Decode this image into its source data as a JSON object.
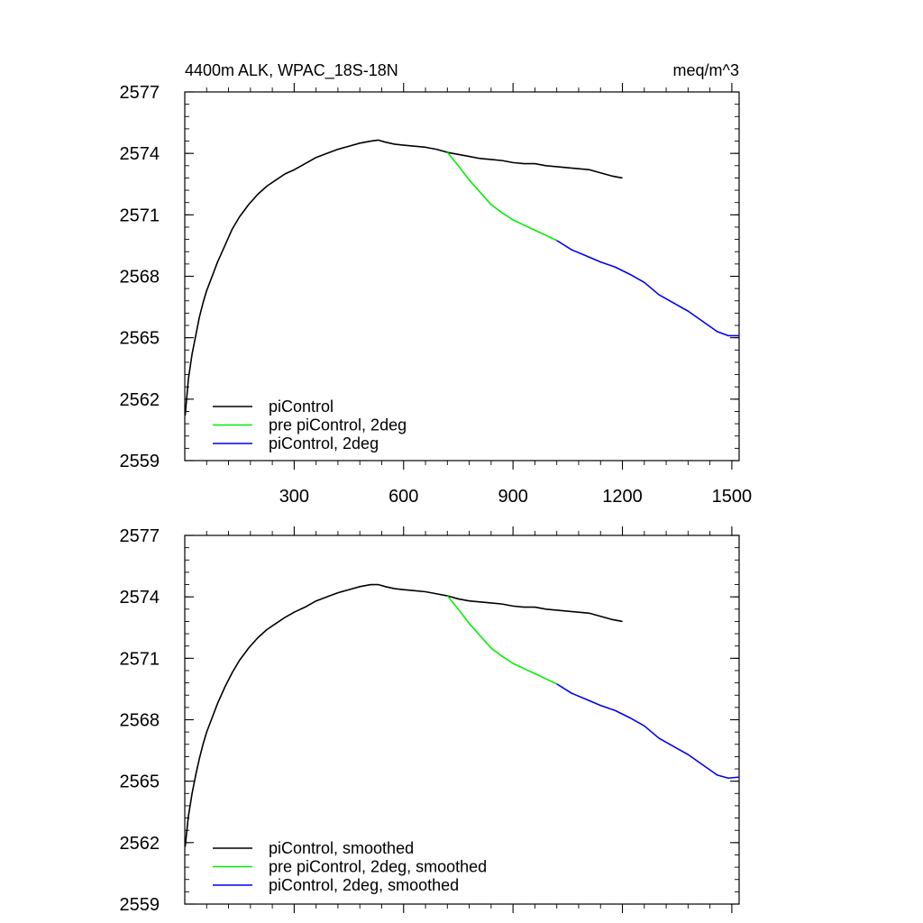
{
  "chart_data": [
    {
      "type": "line",
      "title": "4400m ALK, WPAC_18S-18N",
      "units": "meq/m^3",
      "xlabel": "",
      "ylabel": "",
      "xlim": [
        0,
        1520
      ],
      "ylim": [
        2559,
        2577
      ],
      "x_ticks": [
        300,
        600,
        900,
        1200,
        1500
      ],
      "x_tick_labels": [
        "300",
        "600",
        "900",
        "1200",
        "1500"
      ],
      "y_ticks": [
        2559,
        2562,
        2565,
        2568,
        2571,
        2574,
        2577
      ],
      "y_tick_labels": [
        "2559",
        "2562",
        "2565",
        "2568",
        "2571",
        "2574",
        "2577"
      ],
      "legend_position": "bottom-left",
      "grid": false,
      "series": [
        {
          "name": "piControl",
          "color": "#000000",
          "x": [
            1,
            10,
            20,
            30,
            40,
            50,
            60,
            75,
            90,
            110,
            130,
            150,
            175,
            200,
            225,
            250,
            275,
            300,
            330,
            360,
            390,
            420,
            450,
            480,
            510,
            530,
            550,
            575,
            600,
            630,
            660,
            690,
            720,
            750,
            780,
            810,
            840,
            870,
            900,
            930,
            960,
            990,
            1020,
            1050,
            1080,
            1110,
            1140,
            1170,
            1200
          ],
          "values": [
            2561.2,
            2563.0,
            2564.2,
            2565.1,
            2566.0,
            2566.7,
            2567.3,
            2568.0,
            2568.7,
            2569.5,
            2570.3,
            2570.9,
            2571.5,
            2572.0,
            2572.4,
            2572.7,
            2573.0,
            2573.2,
            2573.5,
            2573.8,
            2574.0,
            2574.2,
            2574.35,
            2574.5,
            2574.6,
            2574.65,
            2574.55,
            2574.45,
            2574.4,
            2574.35,
            2574.3,
            2574.2,
            2574.05,
            2573.95,
            2573.85,
            2573.75,
            2573.7,
            2573.65,
            2573.55,
            2573.5,
            2573.5,
            2573.4,
            2573.35,
            2573.3,
            2573.25,
            2573.2,
            2573.05,
            2572.9,
            2572.8
          ]
        },
        {
          "name": "pre piControl, 2deg",
          "color": "#00ee00",
          "x": [
            720,
            750,
            780,
            810,
            840,
            870,
            900,
            930,
            960,
            990,
            1020
          ],
          "values": [
            2574.05,
            2573.4,
            2572.7,
            2572.1,
            2571.5,
            2571.1,
            2570.75,
            2570.5,
            2570.25,
            2570.0,
            2569.75
          ]
        },
        {
          "name": "piControl, 2deg",
          "color": "#0000ee",
          "x": [
            1020,
            1060,
            1100,
            1140,
            1180,
            1220,
            1260,
            1300,
            1340,
            1380,
            1420,
            1460,
            1490,
            1520
          ],
          "values": [
            2569.75,
            2569.3,
            2569.0,
            2568.7,
            2568.45,
            2568.1,
            2567.7,
            2567.1,
            2566.7,
            2566.3,
            2565.8,
            2565.3,
            2565.1,
            2565.1
          ]
        }
      ]
    },
    {
      "type": "line",
      "title": "",
      "units": "",
      "xlabel": "",
      "ylabel": "",
      "xlim": [
        0,
        1520
      ],
      "ylim": [
        2559,
        2577
      ],
      "x_ticks": [
        300,
        600,
        900,
        1200,
        1500
      ],
      "x_tick_labels": [],
      "y_ticks": [
        2559,
        2562,
        2565,
        2568,
        2571,
        2574,
        2577
      ],
      "y_tick_labels": [
        "2559",
        "2562",
        "2565",
        "2568",
        "2571",
        "2574",
        "2577"
      ],
      "legend_position": "bottom-left",
      "grid": false,
      "series": [
        {
          "name": "piControl, smoothed",
          "color": "#000000",
          "x": [
            1,
            10,
            20,
            30,
            40,
            50,
            60,
            75,
            90,
            110,
            130,
            150,
            175,
            200,
            225,
            250,
            275,
            300,
            330,
            360,
            390,
            420,
            450,
            480,
            510,
            530,
            550,
            575,
            600,
            630,
            660,
            690,
            720,
            750,
            780,
            810,
            840,
            870,
            900,
            930,
            960,
            990,
            1020,
            1050,
            1080,
            1110,
            1140,
            1170,
            1200
          ],
          "values": [
            2561.8,
            2563.3,
            2564.4,
            2565.3,
            2566.1,
            2566.8,
            2567.4,
            2568.1,
            2568.8,
            2569.6,
            2570.3,
            2570.9,
            2571.5,
            2572.0,
            2572.4,
            2572.7,
            2573.0,
            2573.25,
            2573.5,
            2573.8,
            2574.0,
            2574.2,
            2574.35,
            2574.5,
            2574.6,
            2574.6,
            2574.5,
            2574.4,
            2574.35,
            2574.3,
            2574.25,
            2574.15,
            2574.05,
            2573.9,
            2573.8,
            2573.75,
            2573.7,
            2573.65,
            2573.55,
            2573.5,
            2573.5,
            2573.4,
            2573.35,
            2573.3,
            2573.25,
            2573.2,
            2573.05,
            2572.9,
            2572.8
          ]
        },
        {
          "name": "pre piControl, 2deg, smoothed",
          "color": "#00ee00",
          "x": [
            720,
            750,
            780,
            810,
            840,
            870,
            900,
            930,
            960,
            990,
            1020
          ],
          "values": [
            2574.05,
            2573.4,
            2572.7,
            2572.1,
            2571.5,
            2571.1,
            2570.75,
            2570.5,
            2570.25,
            2570.0,
            2569.75
          ]
        },
        {
          "name": "piControl, 2deg, smoothed",
          "color": "#0000ee",
          "x": [
            1020,
            1060,
            1100,
            1140,
            1180,
            1220,
            1260,
            1300,
            1340,
            1380,
            1420,
            1460,
            1490,
            1520
          ],
          "values": [
            2569.75,
            2569.3,
            2569.0,
            2568.7,
            2568.45,
            2568.1,
            2567.7,
            2567.1,
            2566.7,
            2566.3,
            2565.8,
            2565.3,
            2565.15,
            2565.2
          ]
        }
      ]
    }
  ]
}
